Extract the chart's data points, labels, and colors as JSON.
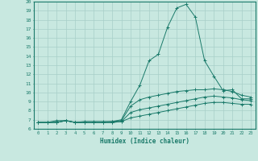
{
  "xlabel": "Humidex (Indice chaleur)",
  "bg_color": "#c8e8e0",
  "line_color": "#1a7a6a",
  "grid_color": "#a8cfc8",
  "xlim": [
    -0.5,
    23.5
  ],
  "ylim": [
    6,
    20
  ],
  "xticks": [
    0,
    1,
    2,
    3,
    4,
    5,
    6,
    7,
    8,
    9,
    10,
    11,
    12,
    13,
    14,
    15,
    16,
    17,
    18,
    19,
    20,
    21,
    22,
    23
  ],
  "yticks": [
    6,
    7,
    8,
    9,
    10,
    11,
    12,
    13,
    14,
    15,
    16,
    17,
    18,
    19,
    20
  ],
  "series": [
    {
      "x": [
        0,
        1,
        2,
        3,
        4,
        5,
        6,
        7,
        8,
        9,
        10,
        11,
        12,
        13,
        14,
        15,
        16,
        17,
        18,
        19,
        20,
        21,
        22,
        23
      ],
      "y": [
        6.7,
        6.7,
        6.9,
        6.9,
        6.7,
        6.8,
        6.8,
        6.8,
        6.8,
        7.0,
        9.0,
        10.8,
        13.5,
        14.2,
        17.2,
        19.3,
        19.7,
        18.3,
        13.5,
        11.8,
        10.2,
        10.3,
        9.3,
        9.3
      ]
    },
    {
      "x": [
        0,
        1,
        2,
        3,
        4,
        5,
        6,
        7,
        8,
        9,
        10,
        11,
        12,
        13,
        14,
        15,
        16,
        17,
        18,
        19,
        20,
        21,
        22,
        23
      ],
      "y": [
        6.7,
        6.7,
        6.7,
        6.9,
        6.7,
        6.7,
        6.7,
        6.7,
        6.8,
        6.9,
        8.5,
        9.2,
        9.5,
        9.7,
        9.9,
        10.1,
        10.2,
        10.3,
        10.3,
        10.4,
        10.3,
        10.1,
        9.7,
        9.5
      ]
    },
    {
      "x": [
        0,
        1,
        2,
        3,
        4,
        5,
        6,
        7,
        8,
        9,
        10,
        11,
        12,
        13,
        14,
        15,
        16,
        17,
        18,
        19,
        20,
        21,
        22,
        23
      ],
      "y": [
        6.7,
        6.7,
        6.7,
        6.9,
        6.7,
        6.7,
        6.7,
        6.7,
        6.7,
        6.8,
        7.8,
        8.1,
        8.3,
        8.5,
        8.7,
        8.9,
        9.1,
        9.3,
        9.5,
        9.6,
        9.5,
        9.4,
        9.2,
        9.1
      ]
    },
    {
      "x": [
        0,
        1,
        2,
        3,
        4,
        5,
        6,
        7,
        8,
        9,
        10,
        11,
        12,
        13,
        14,
        15,
        16,
        17,
        18,
        19,
        20,
        21,
        22,
        23
      ],
      "y": [
        6.7,
        6.7,
        6.7,
        6.9,
        6.7,
        6.7,
        6.7,
        6.7,
        6.7,
        6.8,
        7.2,
        7.4,
        7.6,
        7.8,
        8.0,
        8.2,
        8.4,
        8.6,
        8.8,
        8.9,
        8.9,
        8.8,
        8.7,
        8.7
      ]
    }
  ]
}
